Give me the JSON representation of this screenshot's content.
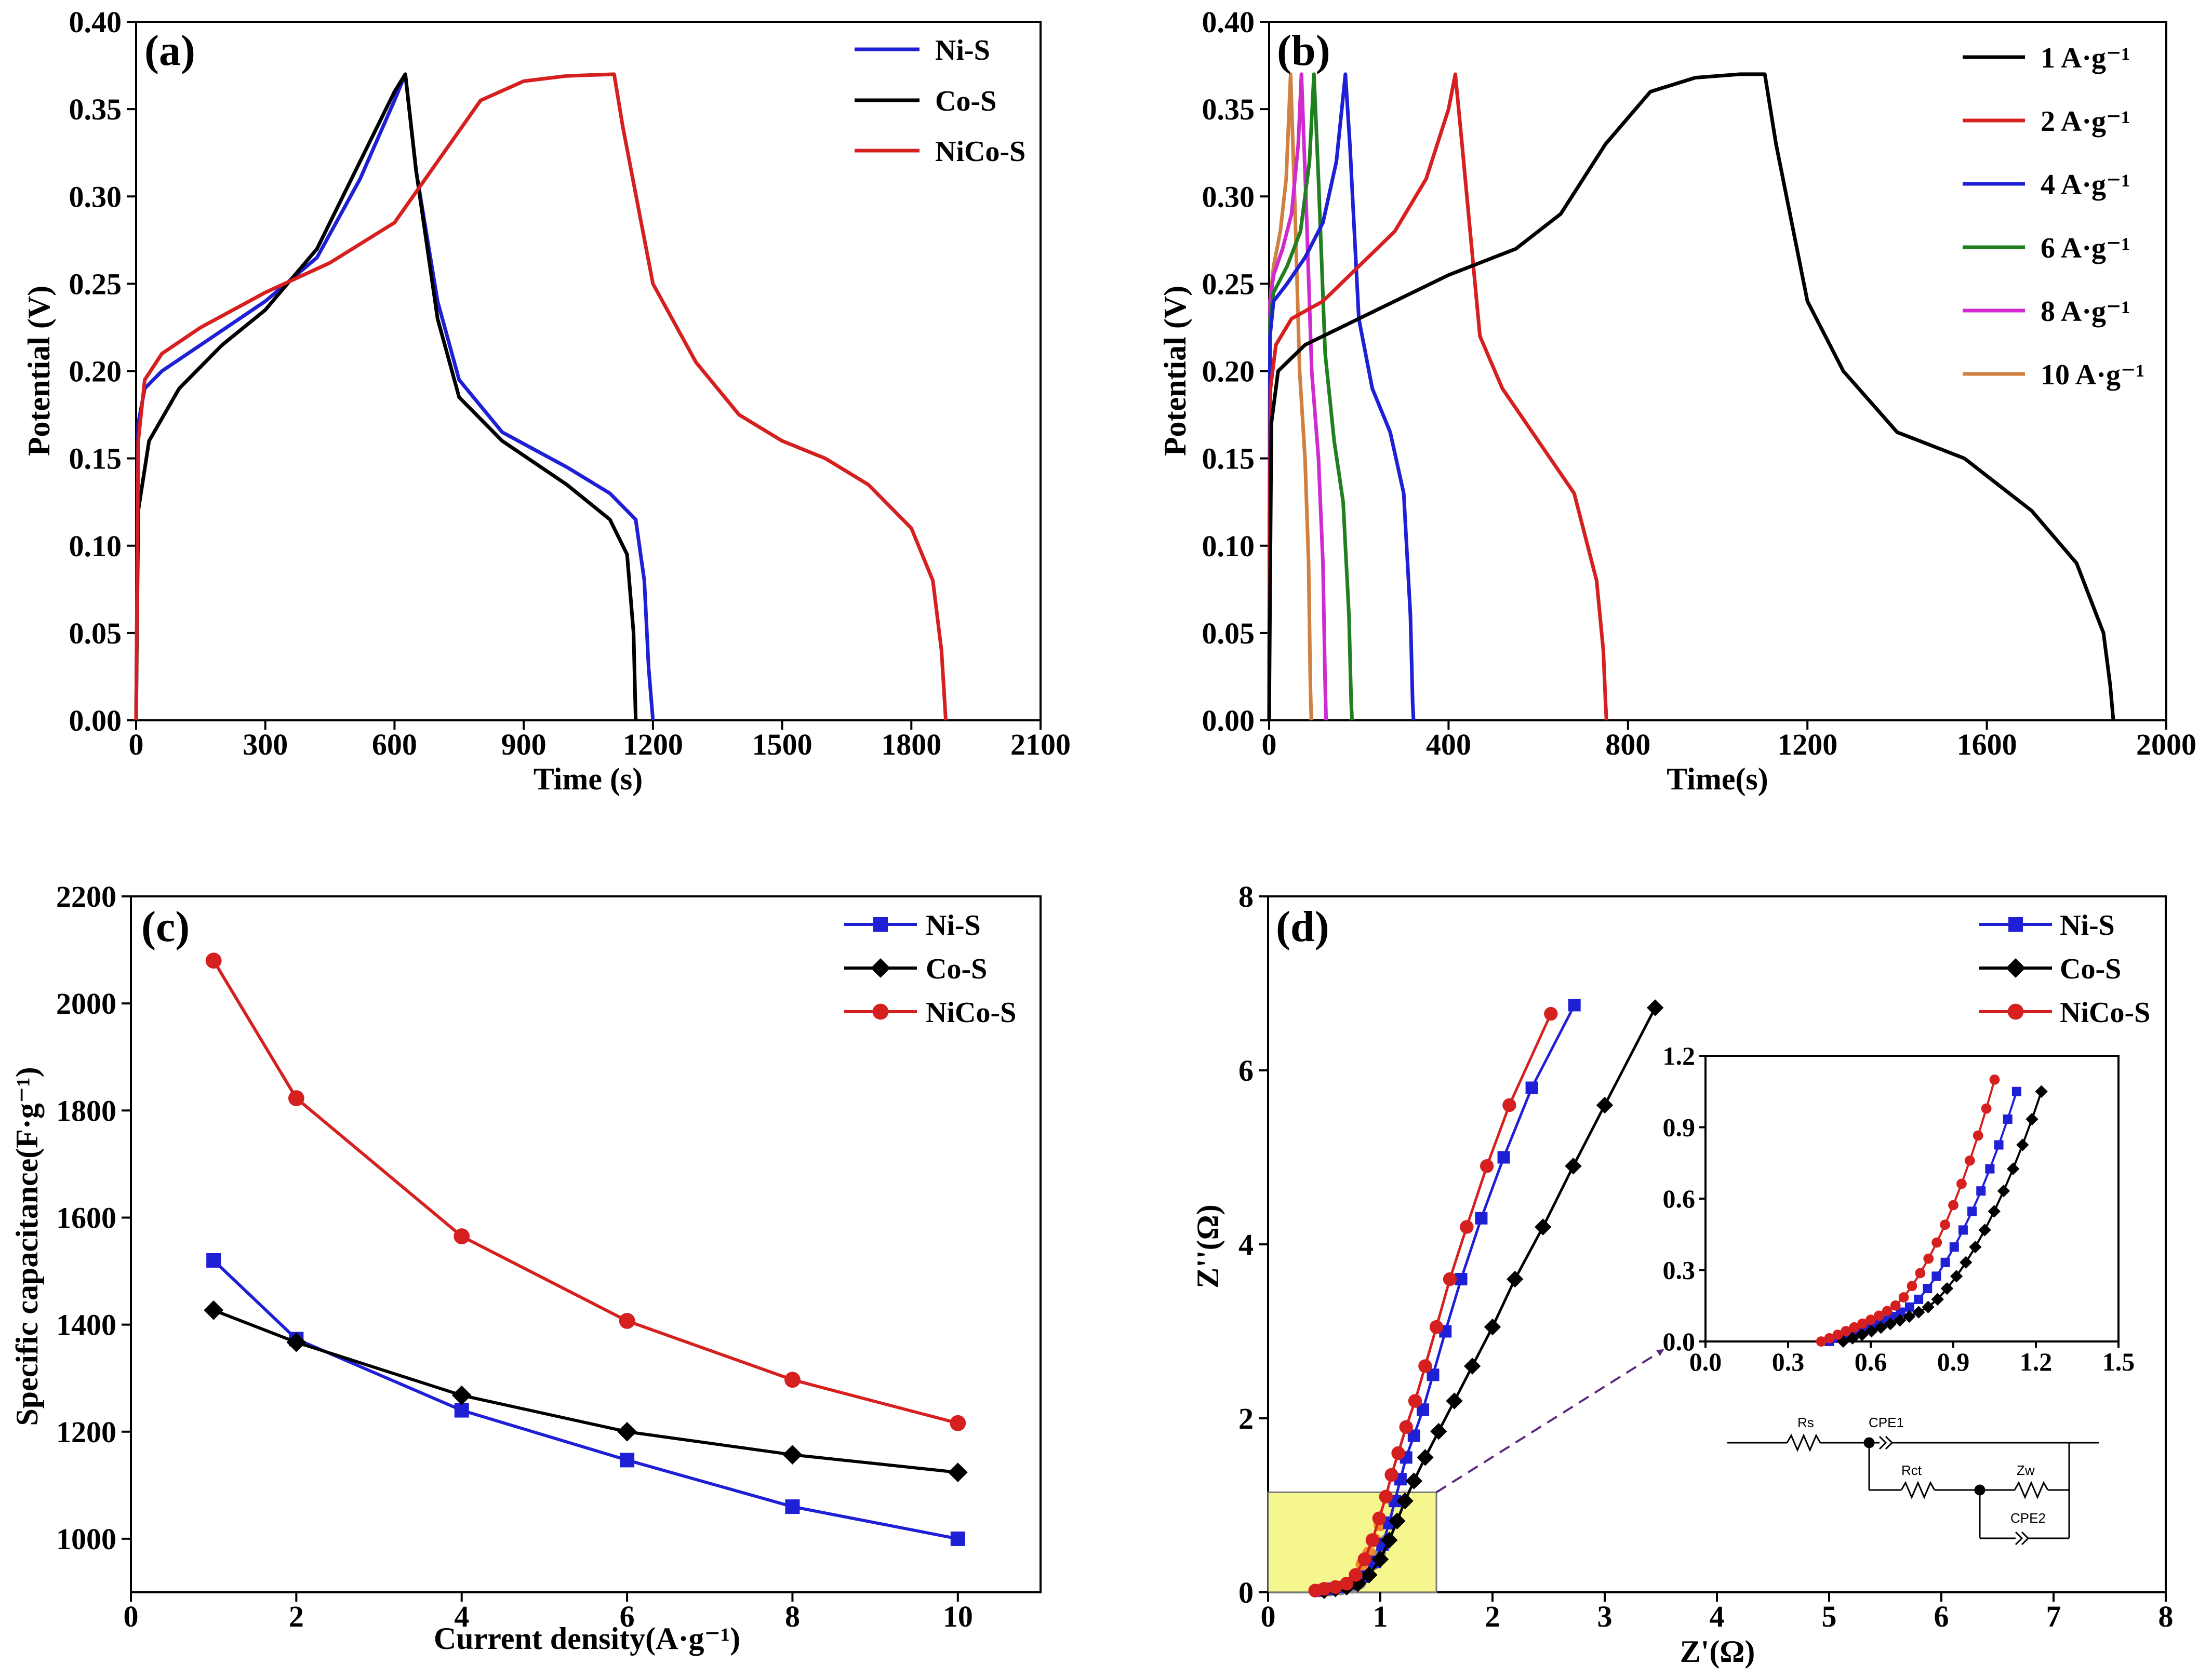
{
  "chart_data": [
    {
      "panel_label": "(a)",
      "type": "line",
      "xlabel": "Time (s)",
      "ylabel": "Potential (V)",
      "xlim": [
        0,
        2100
      ],
      "ylim": [
        0,
        0.4
      ],
      "xticks": [
        "0",
        "300",
        "600",
        "900",
        "1200",
        "1500",
        "1800",
        "2100"
      ],
      "yticks": [
        "0.00",
        "0.05",
        "0.10",
        "0.15",
        "0.20",
        "0.25",
        "0.30",
        "0.35",
        "0.40"
      ],
      "legend_position": "top-right",
      "series": [
        {
          "name": "Ni-S",
          "color": "#1f1fd6",
          "x": [
            0,
            5,
            20,
            60,
            150,
            300,
            420,
            520,
            600,
            625,
            650,
            700,
            750,
            850,
            1000,
            1100,
            1160,
            1180,
            1190,
            1200
          ],
          "y": [
            0.0,
            0.17,
            0.19,
            0.2,
            0.215,
            0.24,
            0.265,
            0.31,
            0.355,
            0.37,
            0.315,
            0.24,
            0.195,
            0.165,
            0.145,
            0.13,
            0.115,
            0.08,
            0.03,
            0.0
          ]
        },
        {
          "name": "Co-S",
          "color": "#000000",
          "x": [
            0,
            5,
            30,
            100,
            200,
            300,
            420,
            520,
            600,
            625,
            650,
            700,
            750,
            850,
            1000,
            1100,
            1140,
            1155,
            1160
          ],
          "y": [
            0.0,
            0.12,
            0.16,
            0.19,
            0.215,
            0.235,
            0.27,
            0.32,
            0.36,
            0.37,
            0.315,
            0.23,
            0.185,
            0.16,
            0.135,
            0.115,
            0.095,
            0.05,
            0.0
          ]
        },
        {
          "name": "NiCo-S",
          "color": "#d62020",
          "x": [
            0,
            5,
            20,
            60,
            150,
            300,
            450,
            600,
            700,
            800,
            900,
            1000,
            1110,
            1130,
            1200,
            1300,
            1400,
            1500,
            1600,
            1700,
            1800,
            1850,
            1870,
            1880
          ],
          "y": [
            0.0,
            0.16,
            0.195,
            0.21,
            0.225,
            0.245,
            0.262,
            0.285,
            0.32,
            0.355,
            0.366,
            0.369,
            0.37,
            0.34,
            0.25,
            0.205,
            0.175,
            0.16,
            0.15,
            0.135,
            0.11,
            0.08,
            0.04,
            0.0
          ]
        }
      ]
    },
    {
      "panel_label": "(b)",
      "type": "line",
      "xlabel": "Time(s)",
      "ylabel": "Potential (V)",
      "xlim": [
        0,
        2000
      ],
      "ylim": [
        0,
        0.4
      ],
      "xticks": [
        "0",
        "400",
        "800",
        "1200",
        "1600",
        "2000"
      ],
      "yticks": [
        "0.00",
        "0.05",
        "0.10",
        "0.15",
        "0.20",
        "0.25",
        "0.30",
        "0.35",
        "0.40"
      ],
      "legend_position": "top-right",
      "series": [
        {
          "name": "1 A·g⁻¹",
          "color": "#000000",
          "x": [
            0,
            5,
            20,
            80,
            200,
            400,
            550,
            650,
            750,
            850,
            950,
            1050,
            1105,
            1130,
            1200,
            1280,
            1400,
            1550,
            1700,
            1800,
            1860,
            1875,
            1882
          ],
          "y": [
            0.0,
            0.17,
            0.2,
            0.215,
            0.23,
            0.255,
            0.27,
            0.29,
            0.33,
            0.36,
            0.368,
            0.37,
            0.37,
            0.33,
            0.24,
            0.2,
            0.165,
            0.15,
            0.12,
            0.09,
            0.05,
            0.02,
            0.0
          ]
        },
        {
          "name": "2 A·g⁻¹",
          "color": "#d62020",
          "x": [
            0,
            3,
            15,
            50,
            120,
            200,
            280,
            350,
            400,
            415,
            430,
            470,
            520,
            600,
            680,
            730,
            745,
            750,
            752
          ],
          "y": [
            0.0,
            0.19,
            0.215,
            0.23,
            0.24,
            0.26,
            0.28,
            0.31,
            0.35,
            0.37,
            0.33,
            0.22,
            0.19,
            0.16,
            0.13,
            0.08,
            0.04,
            0.01,
            0.0
          ]
        },
        {
          "name": "4 A·g⁻¹",
          "color": "#1f1fd6",
          "x": [
            0,
            2,
            10,
            40,
            80,
            120,
            150,
            170,
            180,
            200,
            230,
            270,
            300,
            315,
            320,
            322
          ],
          "y": [
            0.0,
            0.22,
            0.24,
            0.25,
            0.265,
            0.285,
            0.32,
            0.37,
            0.33,
            0.23,
            0.19,
            0.165,
            0.13,
            0.06,
            0.01,
            0.0
          ]
        },
        {
          "name": "6 A·g⁻¹",
          "color": "#208020",
          "x": [
            0,
            2,
            10,
            40,
            70,
            90,
            100,
            110,
            125,
            145,
            165,
            178,
            183,
            185
          ],
          "y": [
            0.0,
            0.23,
            0.245,
            0.26,
            0.28,
            0.32,
            0.37,
            0.31,
            0.21,
            0.16,
            0.125,
            0.06,
            0.01,
            0.0
          ]
        },
        {
          "name": "8 A·g⁻¹",
          "color": "#d02ad0",
          "x": [
            0,
            2,
            10,
            30,
            50,
            65,
            72,
            82,
            95,
            110,
            120,
            125,
            127
          ],
          "y": [
            0.0,
            0.24,
            0.255,
            0.27,
            0.29,
            0.33,
            0.37,
            0.3,
            0.2,
            0.15,
            0.09,
            0.02,
            0.0
          ]
        },
        {
          "name": "10 A·g⁻¹",
          "color": "#d08040",
          "x": [
            0,
            2,
            10,
            25,
            38,
            48,
            58,
            68,
            80,
            88,
            92,
            94
          ],
          "y": [
            0.0,
            0.24,
            0.26,
            0.28,
            0.31,
            0.37,
            0.29,
            0.2,
            0.15,
            0.09,
            0.02,
            0.0
          ]
        }
      ]
    },
    {
      "panel_label": "(c)",
      "type": "line",
      "xlabel": "Current density(A·g⁻¹)",
      "ylabel": "Specific capacitance(F·g⁻¹)",
      "xlim": [
        0,
        11
      ],
      "ylim": [
        900,
        2200
      ],
      "xticks": [
        "0",
        "2",
        "4",
        "6",
        "8",
        "10"
      ],
      "yticks": [
        "1000",
        "1200",
        "1400",
        "1600",
        "1800",
        "2000",
        "2200"
      ],
      "legend_position": "top-right",
      "x": [
        1,
        2,
        4,
        6,
        8,
        10
      ],
      "series": [
        {
          "name": "Ni-S",
          "color": "#1f1fd6",
          "marker": "square",
          "values": [
            1520,
            1373,
            1240,
            1147,
            1060,
            1000
          ]
        },
        {
          "name": "Co-S",
          "color": "#000000",
          "marker": "diamond",
          "values": [
            1427,
            1367,
            1268,
            1200,
            1157,
            1124
          ]
        },
        {
          "name": "NiCo-S",
          "color": "#d62020",
          "marker": "circle",
          "values": [
            2080,
            1823,
            1565,
            1407,
            1297,
            1216
          ]
        }
      ]
    },
    {
      "panel_label": "(d)",
      "type": "scatter",
      "xlabel": "Z'(Ω)",
      "ylabel": "Z''(Ω)",
      "xlim": [
        0,
        8
      ],
      "ylim": [
        0,
        8
      ],
      "xticks": [
        "0",
        "1",
        "2",
        "3",
        "4",
        "5",
        "6",
        "7",
        "8"
      ],
      "yticks": [
        "0",
        "2",
        "4",
        "6",
        "8"
      ],
      "legend_position": "top-right",
      "series": [
        {
          "name": "Ni-S",
          "color": "#1f1fd6",
          "marker": "square",
          "x": [
            0.45,
            0.55,
            0.65,
            0.75,
            0.85,
            0.95,
            1.02,
            1.08,
            1.13,
            1.18,
            1.23,
            1.3,
            1.38,
            1.47,
            1.58,
            1.72,
            1.9,
            2.1,
            2.35,
            2.73
          ],
          "y": [
            0.02,
            0.04,
            0.06,
            0.1,
            0.18,
            0.35,
            0.55,
            0.8,
            1.05,
            1.3,
            1.55,
            1.8,
            2.1,
            2.5,
            3.0,
            3.6,
            4.3,
            5.0,
            5.8,
            6.75
          ]
        },
        {
          "name": "Co-S",
          "color": "#000000",
          "marker": "diamond",
          "x": [
            0.5,
            0.6,
            0.7,
            0.8,
            0.9,
            1.0,
            1.08,
            1.15,
            1.22,
            1.3,
            1.4,
            1.52,
            1.66,
            1.82,
            2.0,
            2.2,
            2.45,
            2.72,
            3.0,
            3.45
          ],
          "y": [
            0.02,
            0.04,
            0.06,
            0.1,
            0.2,
            0.38,
            0.6,
            0.82,
            1.05,
            1.28,
            1.55,
            1.85,
            2.2,
            2.6,
            3.05,
            3.6,
            4.2,
            4.9,
            5.6,
            6.72
          ]
        },
        {
          "name": "NiCo-S",
          "color": "#d62020",
          "marker": "circle",
          "x": [
            0.42,
            0.5,
            0.6,
            0.7,
            0.78,
            0.86,
            0.93,
            0.99,
            1.05,
            1.1,
            1.16,
            1.23,
            1.31,
            1.4,
            1.5,
            1.62,
            1.77,
            1.95,
            2.15,
            2.52
          ],
          "y": [
            0.02,
            0.04,
            0.06,
            0.1,
            0.2,
            0.38,
            0.6,
            0.85,
            1.1,
            1.35,
            1.6,
            1.9,
            2.2,
            2.6,
            3.05,
            3.6,
            4.2,
            4.9,
            5.6,
            6.65
          ]
        }
      ],
      "inset": {
        "xlim": [
          0,
          1.5
        ],
        "ylim": [
          0,
          1.2
        ],
        "xticks": [
          "0.0",
          "0.3",
          "0.6",
          "0.9",
          "1.2",
          "1.5"
        ],
        "yticks": [
          "0.0",
          "0.3",
          "0.6",
          "0.9",
          "1.2"
        ],
        "zoom_region": {
          "x": [
            0,
            1.5
          ],
          "y": [
            0,
            1.15
          ]
        },
        "circuit_labels": [
          "Rs",
          "CPE1",
          "Rct",
          "Zw",
          "CPE2"
        ]
      }
    }
  ]
}
